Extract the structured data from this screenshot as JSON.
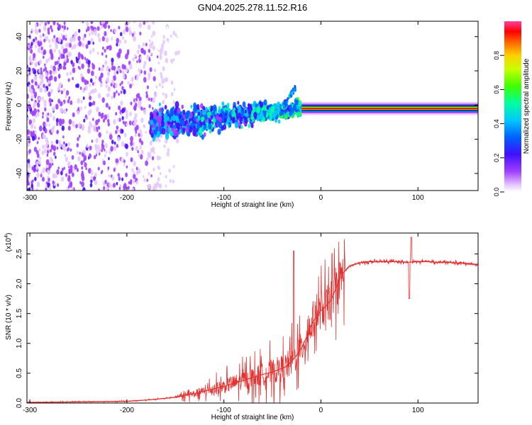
{
  "title": "GN04.2025.278.11.52.R16",
  "chart_data": [
    {
      "type": "heatmap",
      "name": "spectrogram",
      "xlabel": "Height of straight line (km)",
      "ylabel": "Frequency (Hz)",
      "xlim": [
        -303,
        162
      ],
      "ylim": [
        -50,
        49
      ],
      "xticks": [
        -300,
        -200,
        -100,
        0,
        100
      ],
      "xtick_labels": [
        "-300",
        "-200",
        "-100",
        "0",
        "100"
      ],
      "yticks": [
        -40,
        -20,
        0,
        20,
        40
      ],
      "ytick_labels": [
        "-40",
        "-20",
        "0",
        "20",
        "40"
      ],
      "colorbar": {
        "label": "Normalized spectral amplitude",
        "range": [
          0,
          1
        ],
        "ticks": [
          0.0,
          0.2,
          0.4,
          0.6,
          0.8
        ],
        "tick_labels": [
          "0.0",
          "0.2",
          "0.4",
          "0.6",
          "0.8"
        ]
      },
      "features": [
        {
          "desc": "scattered noise",
          "x_range": [
            -303,
            -150
          ],
          "freq_range": [
            -50,
            49
          ],
          "amplitude": 0.12
        },
        {
          "desc": "broadening band",
          "x_range": [
            -175,
            -20
          ],
          "freq_center": [
            -12,
            -2
          ],
          "amplitude": 0.3
        },
        {
          "desc": "steady carrier",
          "x_range": [
            -20,
            162
          ],
          "freq": -2,
          "amplitude": 0.95
        }
      ]
    },
    {
      "type": "line",
      "name": "snr",
      "xlabel": "Height of straight line (km)",
      "ylabel": "SNR (10 * v/v)",
      "scale_label": "(x10",
      "scale_exp": "4",
      "scale_close": ")",
      "xlim": [
        -303,
        162
      ],
      "ylim": [
        0,
        2.85
      ],
      "xticks": [
        -300,
        -200,
        -100,
        0,
        100
      ],
      "xtick_labels": [
        "-300",
        "-200",
        "-100",
        "0",
        "100"
      ],
      "yticks": [
        0.0,
        0.5,
        1.0,
        1.5,
        2.0,
        2.5
      ],
      "ytick_labels": [
        "0.0",
        "0.5",
        "1.0",
        "1.5",
        "2.0",
        "2.5"
      ],
      "series": [
        {
          "name": "SNR",
          "color": "#e53030",
          "x": [
            -303,
            -250,
            -200,
            -180,
            -160,
            -150,
            -140,
            -130,
            -120,
            -110,
            -100,
            -90,
            -80,
            -70,
            -60,
            -50,
            -40,
            -35,
            -30,
            -25,
            -20,
            -15,
            -10,
            -5,
            0,
            5,
            10,
            15,
            20,
            25,
            30,
            40,
            50,
            60,
            70,
            80,
            88,
            92,
            96,
            100,
            110,
            120,
            130,
            140,
            150,
            162
          ],
          "y": [
            0.01,
            0.02,
            0.03,
            0.05,
            0.08,
            0.1,
            0.13,
            0.16,
            0.2,
            0.24,
            0.28,
            0.33,
            0.38,
            0.43,
            0.48,
            0.52,
            0.58,
            0.62,
            0.7,
            0.8,
            0.92,
            1.1,
            1.3,
            1.45,
            1.55,
            1.62,
            1.72,
            1.9,
            2.1,
            2.22,
            2.3,
            2.35,
            2.37,
            2.37,
            2.37,
            2.37,
            2.36,
            2.36,
            2.37,
            2.37,
            2.37,
            2.36,
            2.36,
            2.35,
            2.34,
            2.32
          ]
        }
      ],
      "annotations": [
        {
          "desc": "spike",
          "x": -28,
          "y": 2.55
        },
        {
          "desc": "spike",
          "x": 93,
          "y": 2.78
        },
        {
          "desc": "dip",
          "x": 91,
          "y": 1.75
        }
      ]
    }
  ]
}
